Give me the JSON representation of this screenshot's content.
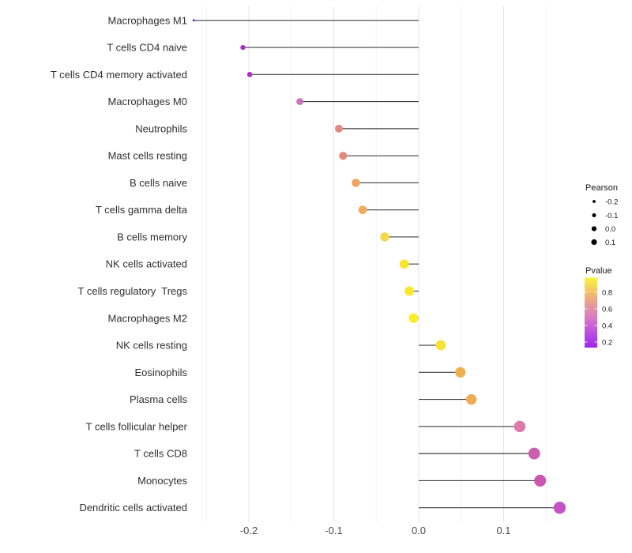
{
  "chart_data": {
    "type": "scatter",
    "subtype": "lollipop",
    "title": "",
    "xlabel": "",
    "ylabel": "",
    "xlim": [
      -0.275,
      0.19
    ],
    "grid": true,
    "x_ticks": [
      "-0.2",
      "-0.1",
      "0.0",
      "0.1"
    ],
    "x_tick_values": [
      -0.2,
      -0.1,
      0.0,
      0.1
    ],
    "grid_major_values": [
      -0.2,
      -0.1,
      0.0,
      0.1
    ],
    "grid_minor_values": [
      -0.25,
      -0.15,
      -0.05,
      0.05,
      0.15
    ],
    "points": [
      {
        "label": "Macrophages M1",
        "pearson": -0.265,
        "pvalue": 0.15,
        "color": "#8912B5"
      },
      {
        "label": "T cells CD4 naive",
        "pearson": -0.207,
        "pvalue": 0.18,
        "color": "#A32CC8"
      },
      {
        "label": "T cells CD4 memory activated",
        "pearson": -0.199,
        "pvalue": 0.18,
        "color": "#A82FC4"
      },
      {
        "label": "Macrophages M0",
        "pearson": -0.14,
        "pvalue": 0.35,
        "color": "#CE6FC0"
      },
      {
        "label": "Neutrophils",
        "pearson": -0.094,
        "pvalue": 0.55,
        "color": "#E18A7D"
      },
      {
        "label": "Mast cells resting",
        "pearson": -0.089,
        "pvalue": 0.55,
        "color": "#E08B7B"
      },
      {
        "label": "B cells naive",
        "pearson": -0.074,
        "pvalue": 0.7,
        "color": "#F0A55F"
      },
      {
        "label": "T cells gamma delta",
        "pearson": -0.066,
        "pvalue": 0.7,
        "color": "#F0AB5C"
      },
      {
        "label": "B cells memory",
        "pearson": -0.04,
        "pvalue": 0.85,
        "color": "#F2D748"
      },
      {
        "label": "NK cells activated",
        "pearson": -0.017,
        "pvalue": 0.9,
        "color": "#F8E52E"
      },
      {
        "label": "T cells regulatory  Tregs",
        "pearson": -0.011,
        "pvalue": 0.9,
        "color": "#F9E92C"
      },
      {
        "label": "Macrophages M2",
        "pearson": -0.006,
        "pvalue": 0.92,
        "color": "#FAEE28"
      },
      {
        "label": "NK cells resting",
        "pearson": 0.026,
        "pvalue": 0.88,
        "color": "#F6E136"
      },
      {
        "label": "Eosinophils",
        "pearson": 0.049,
        "pvalue": 0.68,
        "color": "#EFB04F"
      },
      {
        "label": "Plasma cells",
        "pearson": 0.062,
        "pvalue": 0.66,
        "color": "#EEAC57"
      },
      {
        "label": "T cells follicular helper",
        "pearson": 0.119,
        "pvalue": 0.5,
        "color": "#DB7CA8"
      },
      {
        "label": "T cells CD8",
        "pearson": 0.136,
        "pvalue": 0.42,
        "color": "#CC5FAC"
      },
      {
        "label": "Monocytes",
        "pearson": 0.143,
        "pvalue": 0.4,
        "color": "#CA58B0"
      },
      {
        "label": "Dendritic cells activated",
        "pearson": 0.166,
        "pvalue": 0.3,
        "color": "#C653C6"
      }
    ],
    "legend_size": {
      "title": "Pearson",
      "labels": [
        "-0.2",
        "-0.1",
        "0.0",
        "0.1"
      ],
      "values": [
        -0.2,
        -0.1,
        0.0,
        0.1
      ],
      "dot_color": "#000000"
    },
    "legend_color": {
      "title": "Pvalue",
      "labels": [
        "0.8",
        "0.6",
        "0.4",
        "0.2"
      ],
      "values": [
        0.8,
        0.6,
        0.4,
        0.2
      ],
      "gradient_top_to_bottom": [
        "#FAF63B",
        "#F6CB62",
        "#ECA287",
        "#DE87B5",
        "#CC68D2",
        "#B345E5",
        "#9C26EE"
      ]
    },
    "colors": {
      "stem": "#404040",
      "grid_major": "#E4E4E4",
      "grid_minor": "#F0F0F0",
      "axis_text": "#4D4D4D",
      "label_text": "#303030",
      "legend_text": "#1A1A1A",
      "background": "#FFFFFF"
    }
  }
}
